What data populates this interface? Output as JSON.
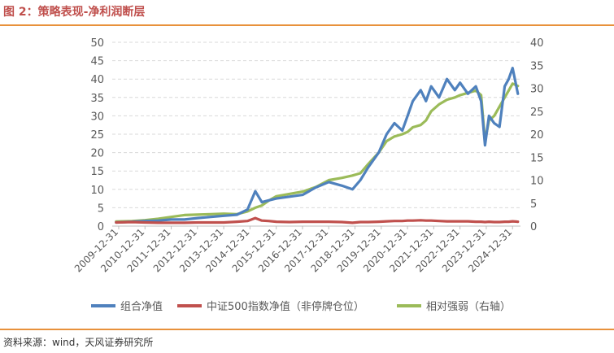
{
  "page": {
    "title": "图 2：策略表现-净利润断层",
    "source": "资料来源：wind，天风证券研究所"
  },
  "colors": {
    "series1": "#4f81bd",
    "series2": "#c0504d",
    "series3": "#9bbb59",
    "grid": "#d9d9d9",
    "accent": "#e8913b"
  },
  "chart_data": {
    "type": "line",
    "title": "",
    "xlabel": "",
    "ylabel": "",
    "ylim": [
      0,
      50
    ],
    "y2lim": [
      0,
      40
    ],
    "yticks": [
      0,
      5,
      10,
      15,
      20,
      25,
      30,
      35,
      40,
      45,
      50
    ],
    "y2ticks": [
      0,
      5,
      10,
      15,
      20,
      25,
      30,
      35,
      40
    ],
    "grid": true,
    "legend_position": "bottom",
    "x_tick_labels": [
      "2009-12-31",
      "2010-12-31",
      "2011-12-31",
      "2012-12-31",
      "2013-12-31",
      "2014-12-31",
      "2015-12-31",
      "2016-12-31",
      "2017-12-31",
      "2018-12-31",
      "2019-12-31",
      "2020-12-31",
      "2021-12-31",
      "2022-12-31",
      "2023-12-31",
      "2024-12-31"
    ],
    "x": [
      2009.9,
      2010.5,
      2011.0,
      2011.5,
      2012.0,
      2012.5,
      2013.0,
      2013.5,
      2014.0,
      2014.5,
      2014.9,
      2015.2,
      2015.45,
      2015.7,
      2016.0,
      2016.5,
      2017.0,
      2017.5,
      2018.0,
      2018.5,
      2018.9,
      2019.2,
      2019.5,
      2019.9,
      2020.2,
      2020.5,
      2020.8,
      2021.0,
      2021.2,
      2021.5,
      2021.7,
      2021.9,
      2022.2,
      2022.5,
      2022.8,
      2023.0,
      2023.3,
      2023.6,
      2023.8,
      2023.95,
      2024.1,
      2024.3,
      2024.5,
      2024.7,
      2024.85,
      2025.0,
      2025.2
    ],
    "series": [
      {
        "name": "组合净值",
        "axis": "left",
        "values": [
          1.0,
          1.2,
          1.4,
          1.5,
          1.8,
          1.8,
          2.2,
          2.5,
          2.8,
          3.1,
          4.5,
          9.5,
          6.5,
          7.0,
          7.5,
          8.0,
          8.5,
          10.5,
          12.0,
          11.0,
          10.0,
          12.5,
          16.0,
          20.0,
          25.0,
          28.0,
          26.0,
          30.0,
          34.0,
          37.0,
          34.0,
          38.0,
          35.0,
          40.0,
          37.0,
          39.0,
          36.0,
          38.0,
          34.0,
          22.0,
          30.0,
          28.0,
          27.0,
          38.0,
          40.0,
          43.0,
          36.0
        ]
      },
      {
        "name": "中证500指数净值（非停牌仓位）",
        "axis": "left",
        "values": [
          1.0,
          1.1,
          1.0,
          0.9,
          0.9,
          0.9,
          1.0,
          1.0,
          1.0,
          1.2,
          1.4,
          2.2,
          1.5,
          1.4,
          1.2,
          1.1,
          1.2,
          1.2,
          1.2,
          1.1,
          0.9,
          1.1,
          1.1,
          1.2,
          1.3,
          1.4,
          1.4,
          1.5,
          1.5,
          1.6,
          1.5,
          1.5,
          1.4,
          1.3,
          1.3,
          1.3,
          1.3,
          1.2,
          1.2,
          1.1,
          1.2,
          1.1,
          1.1,
          1.2,
          1.2,
          1.3,
          1.2
        ]
      },
      {
        "name": "相对强弱（右轴）",
        "axis": "right",
        "values": [
          1.0,
          1.1,
          1.3,
          1.6,
          2.0,
          2.4,
          2.5,
          2.6,
          2.7,
          2.6,
          3.2,
          4.0,
          4.5,
          5.5,
          6.5,
          7.0,
          7.5,
          8.5,
          10.0,
          10.5,
          11.0,
          11.5,
          13.5,
          16.0,
          18.5,
          19.5,
          20.0,
          20.5,
          21.5,
          22.0,
          23.0,
          25.0,
          26.5,
          27.5,
          28.0,
          28.5,
          29.0,
          29.5,
          28.5,
          18.5,
          23.0,
          24.0,
          26.0,
          28.0,
          29.5,
          31.0,
          30.5
        ]
      }
    ]
  }
}
